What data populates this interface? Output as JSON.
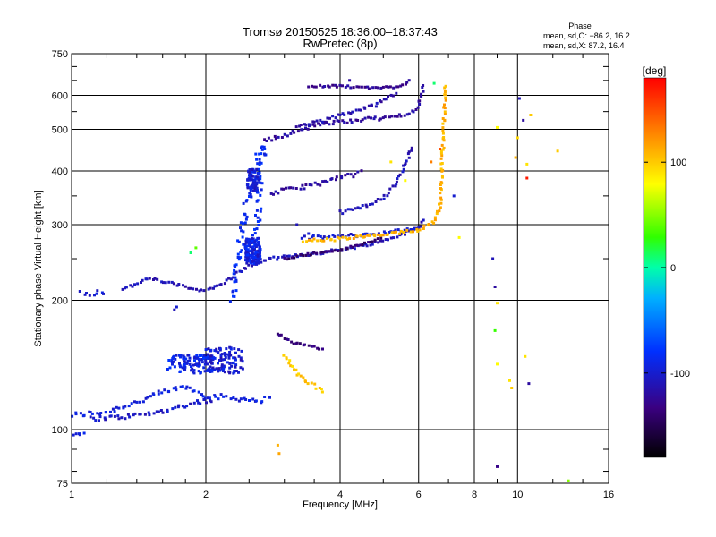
{
  "chart_data": {
    "type": "scatter",
    "title": "Tromsø 20150525 18:36:00–18:37:43",
    "subtitle": "RwPretec (8p)",
    "stats_title": "Phase",
    "stats_o": "mean, sd,O: −86.2, 16.2",
    "stats_x": "mean, sd,X:  87.2, 16.4",
    "xlabel": "Frequency [MHz]",
    "ylabel": "Stationary phase Virtual Height [km]",
    "x_scale": "log2",
    "y_scale": "log",
    "xlim": [
      1,
      16
    ],
    "ylim": [
      75,
      750
    ],
    "x_ticks": [
      1,
      2,
      4,
      6,
      8,
      10,
      16
    ],
    "x_tick_labels": [
      "1",
      "2",
      "4",
      "6",
      "8",
      "10",
      "16"
    ],
    "y_ticks": [
      75,
      100,
      200,
      300,
      400,
      500,
      600,
      750
    ],
    "y_tick_labels": [
      "75",
      "100",
      "200",
      "300",
      "400",
      "500",
      "600",
      "750"
    ],
    "grid": true,
    "colorbar": {
      "label": "[deg]",
      "range": [
        -180,
        180
      ],
      "ticks": [
        100,
        0,
        -100
      ],
      "tick_labels": [
        "100",
        "0",
        "-100"
      ]
    },
    "traces": [
      {
        "phase": -95,
        "jitter": 0.018,
        "points": [
          [
            1.0,
            108
          ],
          [
            1.2,
            110
          ],
          [
            1.4,
            116
          ],
          [
            1.6,
            122
          ],
          [
            1.8,
            126
          ],
          [
            2.0,
            120
          ],
          [
            2.2,
            119
          ],
          [
            2.4,
            118
          ],
          [
            2.6,
            117
          ],
          [
            2.8,
            118
          ]
        ]
      },
      {
        "phase": -105,
        "jitter": 0.015,
        "points": [
          [
            1.1,
            106
          ],
          [
            1.3,
            107
          ],
          [
            1.5,
            109
          ],
          [
            1.7,
            112
          ],
          [
            1.9,
            116
          ],
          [
            2.1,
            117
          ]
        ]
      },
      {
        "phase": -90,
        "jitter": 0.012,
        "points": [
          [
            1.0,
            96
          ],
          [
            1.05,
            98
          ],
          [
            1.08,
            97
          ]
        ]
      },
      {
        "phase": -100,
        "jitter": 0.02,
        "points": [
          [
            1.05,
            210
          ],
          [
            1.1,
            208
          ],
          [
            1.2,
            210
          ]
        ]
      },
      {
        "phase": -110,
        "jitter": 0.01,
        "points": [
          [
            1.3,
            212
          ],
          [
            1.5,
            225
          ],
          [
            1.7,
            218
          ],
          [
            1.9,
            212
          ],
          [
            2.05,
            212
          ],
          [
            2.2,
            220
          ],
          [
            2.4,
            235
          ],
          [
            2.6,
            245
          ],
          [
            2.8,
            250
          ],
          [
            3.0,
            252
          ],
          [
            3.3,
            255
          ],
          [
            3.6,
            258
          ],
          [
            4.0,
            262
          ],
          [
            4.5,
            268
          ],
          [
            5.0,
            275
          ],
          [
            5.5,
            285
          ],
          [
            6.0,
            295
          ],
          [
            6.2,
            310
          ]
        ]
      },
      {
        "phase": -140,
        "jitter": 0.008,
        "points": [
          [
            3.0,
            250
          ],
          [
            3.3,
            255
          ],
          [
            3.6,
            258
          ],
          [
            4.0,
            262
          ],
          [
            4.5,
            270
          ],
          [
            5.0,
            280
          ]
        ]
      },
      {
        "phase": -100,
        "jitter": 0.012,
        "points": [
          [
            3.3,
            280
          ],
          [
            3.6,
            280
          ],
          [
            4.0,
            282
          ],
          [
            4.5,
            284
          ],
          [
            5.0,
            287
          ],
          [
            5.5,
            290
          ],
          [
            6.0,
            295
          ]
        ]
      },
      {
        "phase": 110,
        "jitter": 0.012,
        "points": [
          [
            3.3,
            275
          ],
          [
            3.6,
            276
          ],
          [
            4.0,
            278
          ],
          [
            4.5,
            281
          ],
          [
            5.0,
            284
          ],
          [
            5.5,
            287
          ],
          [
            6.0,
            292
          ],
          [
            6.5,
            305
          ],
          [
            6.7,
            330
          ],
          [
            6.75,
            380
          ],
          [
            6.8,
            450
          ],
          [
            6.85,
            550
          ],
          [
            6.9,
            640
          ]
        ]
      },
      {
        "phase": -120,
        "jitter": 0.015,
        "points": [
          [
            2.8,
            355
          ],
          [
            3.0,
            360
          ],
          [
            3.2,
            365
          ],
          [
            3.5,
            372
          ],
          [
            3.8,
            380
          ],
          [
            4.0,
            385
          ],
          [
            4.3,
            392
          ],
          [
            4.5,
            400
          ]
        ]
      },
      {
        "phase": -110,
        "jitter": 0.012,
        "points": [
          [
            4.0,
            320
          ],
          [
            4.5,
            330
          ],
          [
            5.0,
            345
          ],
          [
            5.3,
            370
          ],
          [
            5.5,
            400
          ],
          [
            5.7,
            430
          ],
          [
            5.8,
            460
          ]
        ]
      },
      {
        "phase": -120,
        "jitter": 0.012,
        "points": [
          [
            2.7,
            470
          ],
          [
            3.0,
            485
          ],
          [
            3.3,
            500
          ],
          [
            3.6,
            515
          ],
          [
            4.0,
            520
          ],
          [
            4.5,
            528
          ],
          [
            5.0,
            530
          ],
          [
            5.5,
            540
          ],
          [
            6.0,
            560
          ],
          [
            6.1,
            600
          ],
          [
            6.15,
            640
          ]
        ]
      },
      {
        "phase": -115,
        "jitter": 0.012,
        "points": [
          [
            3.2,
            510
          ],
          [
            3.6,
            520
          ],
          [
            4.0,
            540
          ],
          [
            4.4,
            555
          ],
          [
            4.8,
            570
          ],
          [
            5.0,
            590
          ],
          [
            5.4,
            610
          ]
        ]
      },
      {
        "phase": -125,
        "jitter": 0.008,
        "points": [
          [
            3.4,
            628
          ],
          [
            3.7,
            630
          ],
          [
            4.0,
            630
          ],
          [
            4.3,
            628
          ],
          [
            4.6,
            625
          ],
          [
            5.0,
            625
          ],
          [
            5.4,
            630
          ],
          [
            5.6,
            640
          ],
          [
            5.8,
            655
          ]
        ]
      },
      {
        "phase": -135,
        "jitter": 0.01,
        "points": [
          [
            2.9,
            168
          ],
          [
            3.1,
            160
          ],
          [
            3.3,
            157
          ],
          [
            3.5,
            155
          ],
          [
            3.7,
            154
          ]
        ]
      },
      {
        "phase": 100,
        "jitter": 0.012,
        "points": [
          [
            3.0,
            150
          ],
          [
            3.2,
            135
          ],
          [
            3.4,
            128
          ],
          [
            3.6,
            125
          ],
          [
            3.7,
            122
          ]
        ]
      },
      {
        "phase": -85,
        "jitter": 0.03,
        "points": [
          [
            2.3,
            200
          ],
          [
            2.35,
            240
          ],
          [
            2.4,
            280
          ],
          [
            2.45,
            320
          ],
          [
            2.5,
            360
          ],
          [
            2.55,
            400
          ],
          [
            2.6,
            430
          ],
          [
            2.7,
            460
          ],
          [
            2.6,
            300
          ],
          [
            2.5,
            250
          ]
        ]
      }
    ],
    "clouds": [
      {
        "center": [
          1.85,
          142
        ],
        "spread": [
          0.12,
          0.05
        ],
        "n": 110,
        "phase": -90
      },
      {
        "center": [
          2.2,
          145
        ],
        "spread": [
          0.1,
          0.07
        ],
        "n": 90,
        "phase": -100
      },
      {
        "center": [
          2.55,
          260
        ],
        "spread": [
          0.04,
          0.07
        ],
        "n": 140,
        "phase": -95
      },
      {
        "center": [
          2.55,
          380
        ],
        "spread": [
          0.03,
          0.06
        ],
        "n": 70,
        "phase": -100
      }
    ],
    "scatter": [
      [
        1.7,
        190,
        -110
      ],
      [
        1.72,
        193,
        -100
      ],
      [
        1.9,
        265,
        40
      ],
      [
        1.85,
        258,
        10
      ],
      [
        2.9,
        92,
        110
      ],
      [
        2.92,
        88,
        115
      ],
      [
        3.2,
        300,
        -110
      ],
      [
        3.4,
        286,
        -100
      ],
      [
        5.2,
        420,
        90
      ],
      [
        5.6,
        380,
        80
      ],
      [
        6.4,
        420,
        130
      ],
      [
        7.2,
        350,
        -100
      ],
      [
        7.4,
        280,
        80
      ],
      [
        8.8,
        250,
        -110
      ],
      [
        8.9,
        215,
        -120
      ],
      [
        9.0,
        197,
        90
      ],
      [
        8.9,
        170,
        30
      ],
      [
        9.0,
        142,
        80
      ],
      [
        9.0,
        82,
        -130
      ],
      [
        9.0,
        505,
        80
      ],
      [
        9.7,
        125,
        100
      ],
      [
        9.6,
        130,
        90
      ],
      [
        9.9,
        430,
        110
      ],
      [
        10.0,
        478,
        95
      ],
      [
        10.1,
        590,
        -110
      ],
      [
        10.3,
        525,
        -120
      ],
      [
        10.5,
        385,
        170
      ],
      [
        10.5,
        415,
        90
      ],
      [
        10.7,
        540,
        100
      ],
      [
        10.6,
        128,
        -120
      ],
      [
        10.4,
        148,
        90
      ],
      [
        12.3,
        445,
        100
      ],
      [
        13.0,
        76,
        50
      ],
      [
        6.5,
        640,
        10
      ],
      [
        6.7,
        450,
        150
      ],
      [
        4.2,
        650,
        -120
      ]
    ]
  }
}
